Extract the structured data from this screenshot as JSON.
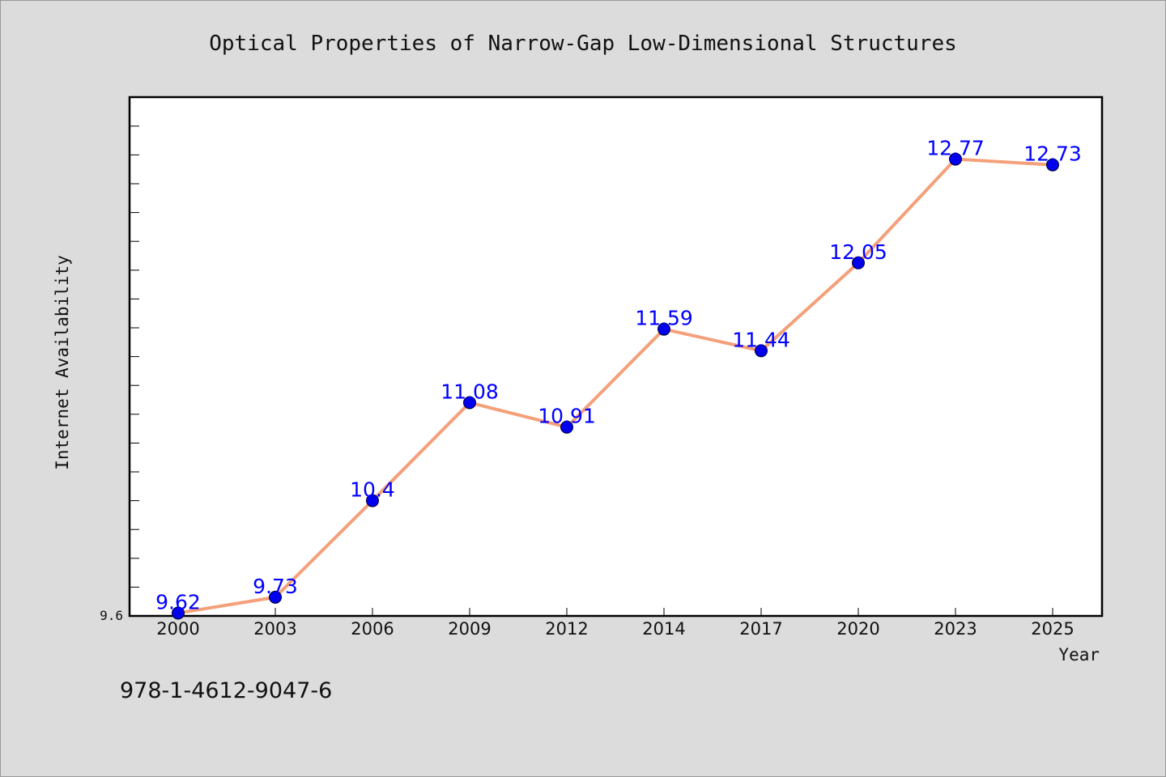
{
  "footer": {
    "text": "978-1-4612-9047-6"
  },
  "colors": {
    "background": "#dcdcdc",
    "plot_bg": "#ffffff",
    "line": "#f4a07a",
    "marker": "#0000ee",
    "label": "#0000ff"
  },
  "chart_data": {
    "type": "line",
    "title": "Optical Properties of Narrow-Gap Low-Dimensional Structures",
    "xlabel": "Year",
    "ylabel": "Internet Availability",
    "categories": [
      "2000",
      "2003",
      "2006",
      "2009",
      "2012",
      "2014",
      "2017",
      "2020",
      "2023",
      "2025"
    ],
    "series": [
      {
        "values": [
          9.62,
          9.73,
          10.4,
          11.08,
          10.91,
          11.59,
          11.44,
          12.05,
          12.77,
          12.73
        ]
      }
    ],
    "data_labels": [
      "9.62",
      "9.73",
      "10.4",
      "11.08",
      "10.91",
      "11.59",
      "11.44",
      "12.05",
      "12.77",
      "12.73"
    ],
    "y_tick_labels": [
      "9.6"
    ],
    "ylim": [
      9.6,
      13.2
    ],
    "grid": false,
    "legend": "none"
  }
}
